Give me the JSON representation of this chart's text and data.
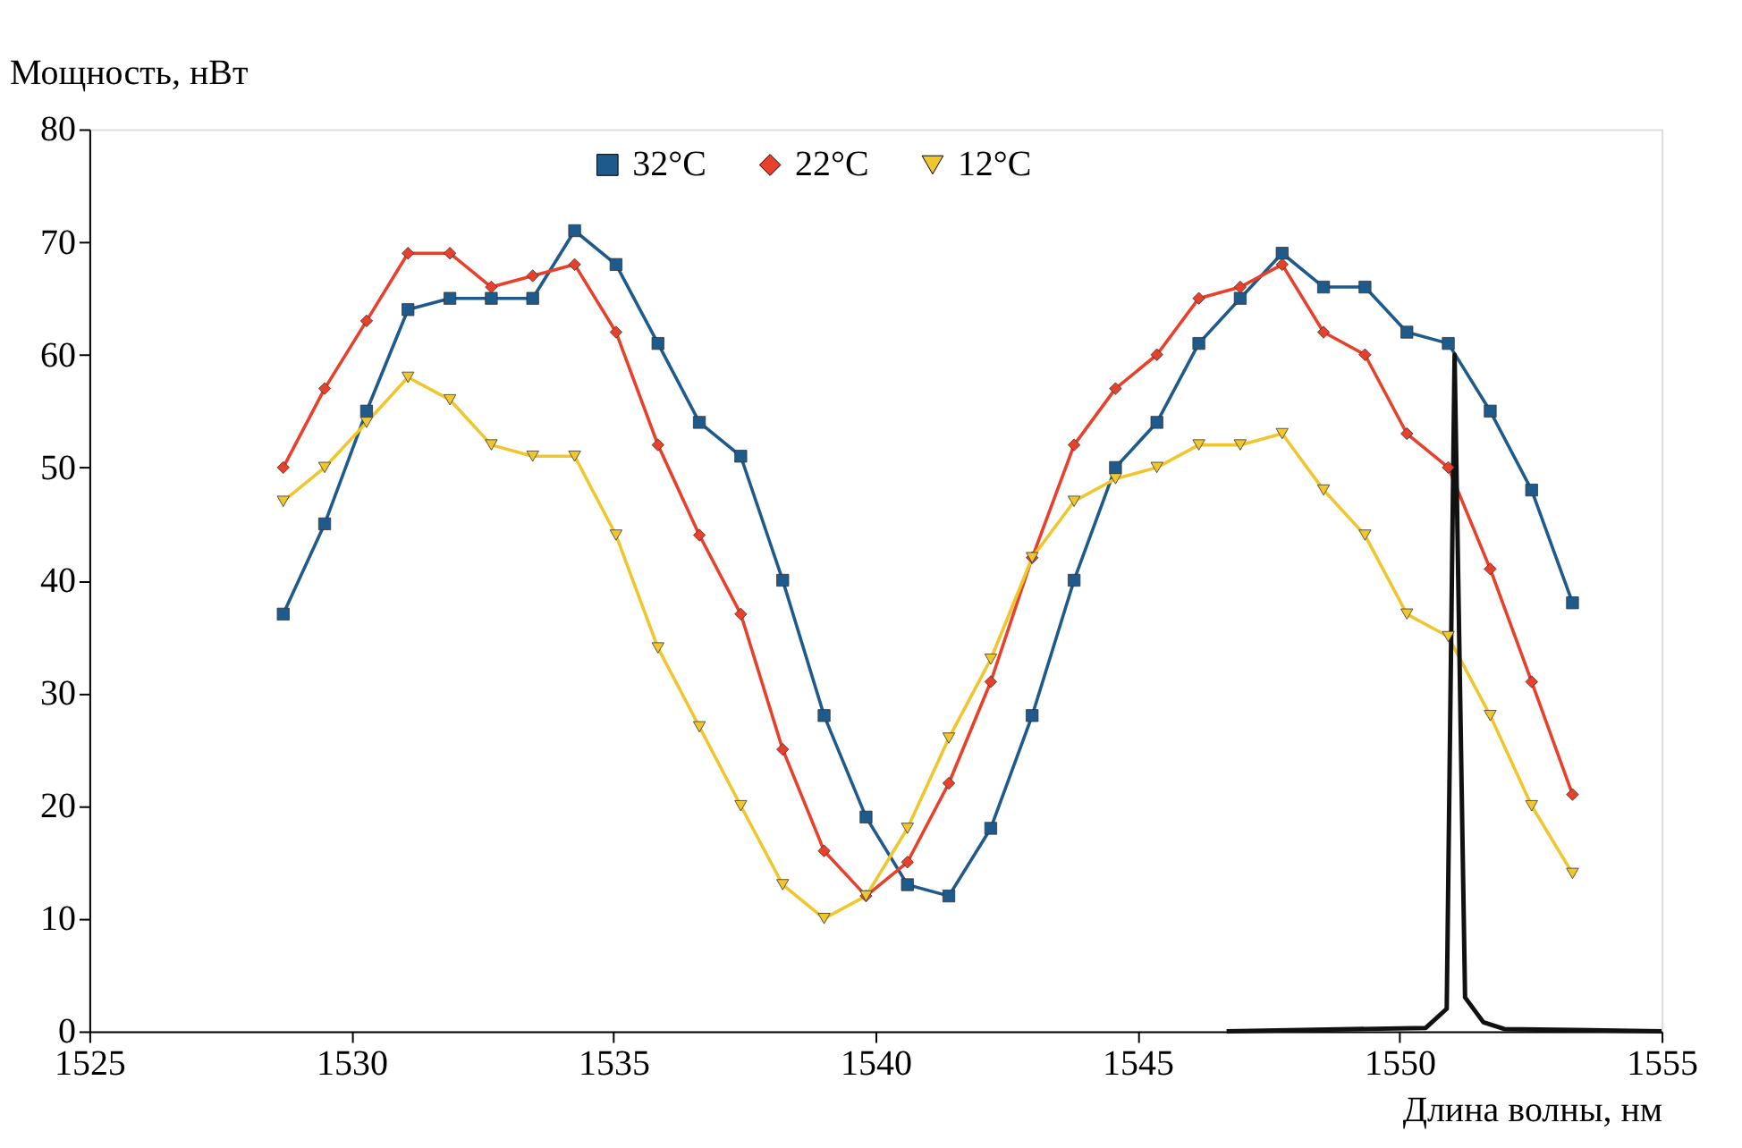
{
  "chart_data": {
    "type": "line",
    "xlabel": "Длина волны, нм",
    "ylabel": "Мощность, нВт",
    "x": [
      1528.7,
      1529.49,
      1530.29,
      1531.08,
      1531.88,
      1532.67,
      1533.46,
      1534.26,
      1535.05,
      1535.85,
      1536.64,
      1537.43,
      1538.23,
      1539.02,
      1539.82,
      1540.61,
      1541.4,
      1542.2,
      1542.99,
      1543.79,
      1544.58,
      1545.37,
      1546.17,
      1546.96,
      1547.76,
      1548.55,
      1549.34,
      1550.14,
      1550.93,
      1551.73,
      1552.52,
      1553.3
    ],
    "series": [
      {
        "name": "32°C",
        "color": "#1f5a8c",
        "marker": "square",
        "values": [
          37,
          45,
          55,
          64,
          65,
          65,
          65,
          71,
          68,
          61,
          54,
          51,
          40,
          28,
          19,
          13,
          12,
          18,
          28,
          40,
          50,
          54,
          61,
          65,
          69,
          66,
          66,
          62,
          61,
          55,
          48,
          38
        ]
      },
      {
        "name": "22°C",
        "color": "#e8402a",
        "marker": "diamond",
        "values": [
          50,
          57,
          63,
          69,
          69,
          66,
          67,
          68,
          62,
          52,
          44,
          37,
          25,
          16,
          12,
          15,
          22,
          31,
          42,
          52,
          57,
          60,
          65,
          66,
          68,
          62,
          60,
          53,
          50,
          41,
          31,
          21
        ]
      },
      {
        "name": "12°C",
        "color": "#f0c62e",
        "marker": "triangle",
        "values": [
          47,
          50,
          54,
          58,
          56,
          52,
          51,
          51,
          44,
          34,
          27,
          20,
          13,
          10,
          12,
          18,
          26,
          33,
          42,
          47,
          49,
          50,
          52,
          52,
          53,
          48,
          44,
          37,
          35,
          28,
          20,
          14
        ]
      },
      {
        "color": "#111111",
        "marker": "none",
        "x": [
          1546.7,
          1550.5,
          1550.9,
          1551.05,
          1551.25,
          1551.6,
          1552.0,
          1555.0
        ],
        "values": [
          0,
          0.3,
          2,
          60,
          3,
          0.8,
          0.2,
          0
        ]
      }
    ],
    "xlim": [
      1525,
      1555
    ],
    "xticks": [
      1525,
      1530,
      1535,
      1540,
      1545,
      1550,
      1555
    ],
    "ylim": [
      0,
      80
    ],
    "yticks": [
      0,
      10,
      20,
      30,
      40,
      50,
      60,
      70,
      80
    ],
    "grid": false,
    "legend": "top",
    "line_style": "solid"
  }
}
